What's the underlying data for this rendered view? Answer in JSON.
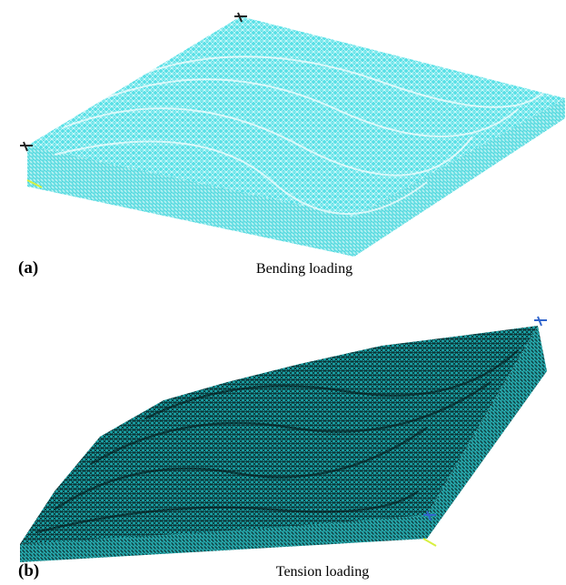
{
  "panels": [
    {
      "label": "(a)",
      "caption": "Bending loading"
    },
    {
      "label": "(b)",
      "caption": "Tension loading"
    }
  ]
}
